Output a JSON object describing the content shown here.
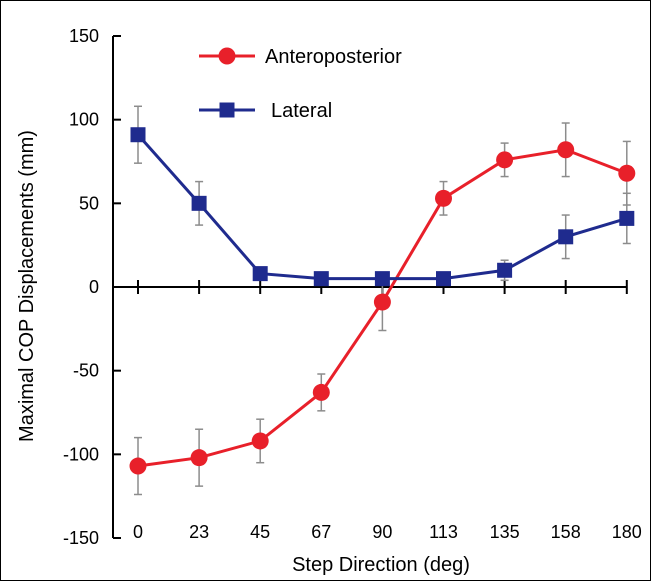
{
  "chart_data": {
    "type": "line",
    "title": "",
    "xlabel": "Step Direction (deg)",
    "ylabel": "Maximal COP Displacements (mm)",
    "categories": [
      "0",
      "23",
      "45",
      "67",
      "90",
      "113",
      "135",
      "158",
      "180"
    ],
    "ylim": [
      -150,
      150
    ],
    "yticks": [
      -150,
      -100,
      -50,
      0,
      50,
      100,
      150
    ],
    "grid": false,
    "legend_position": "top-left",
    "series": [
      {
        "name": "Anteroposterior",
        "marker": "circle",
        "color": "#e8202a",
        "values": [
          -107,
          -102,
          -92,
          -63,
          -9,
          53,
          76,
          82,
          68
        ],
        "error": [
          17,
          17,
          13,
          11,
          17,
          10,
          10,
          16,
          19
        ]
      },
      {
        "name": "Lateral",
        "marker": "square",
        "color": "#1f2b8e",
        "values": [
          91,
          50,
          8,
          5,
          5,
          5,
          10,
          30,
          41
        ],
        "error": [
          17,
          13,
          3,
          2,
          2,
          2,
          6,
          13,
          15
        ]
      }
    ]
  }
}
